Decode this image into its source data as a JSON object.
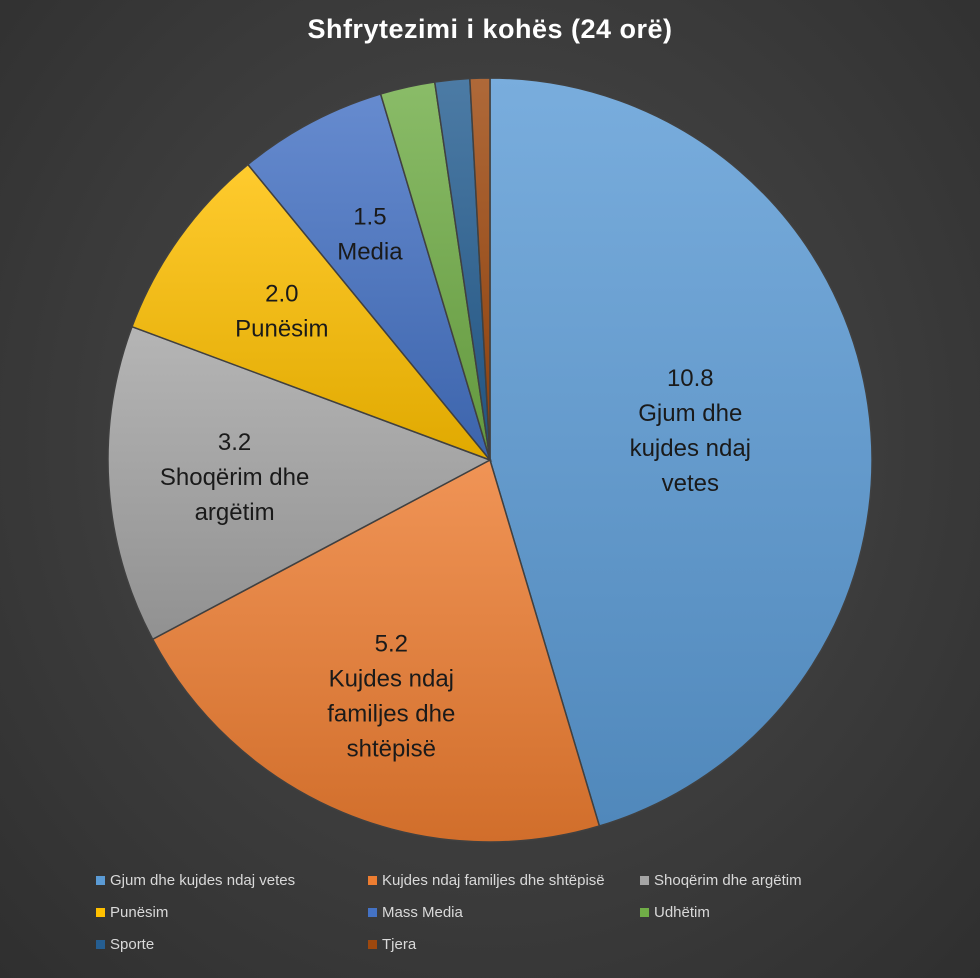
{
  "chart_data": {
    "type": "pie",
    "title": "Shfrytezimi i kohës (24 orë)",
    "legend_position": "bottom",
    "slices": [
      {
        "name": "Gjum dhe kujdes ndaj vetes",
        "value": 10.8,
        "color": "#5b9bd5",
        "label_lines": [
          "10.8",
          "Gjum dhe",
          "kujdes ndaj",
          "vetes"
        ]
      },
      {
        "name": "Kujdes ndaj familjes dhe shtëpisë",
        "value": 5.2,
        "color": "#ed7d31",
        "label_lines": [
          "5.2",
          "Kujdes ndaj",
          "familjes dhe",
          "shtëpisë"
        ]
      },
      {
        "name": "Shoqërim dhe argëtim",
        "value": 3.2,
        "color": "#a5a5a5",
        "label_lines": [
          "3.2",
          "Shoqërim dhe",
          "argëtim"
        ]
      },
      {
        "name": "Punësim",
        "value": 2.0,
        "color": "#ffc000",
        "label_lines": [
          "2.0",
          "Punësim"
        ]
      },
      {
        "name": "Mass Media",
        "value": 1.5,
        "color": "#4472c4",
        "label_lines": [
          "1.5",
          "Media"
        ]
      },
      {
        "name": "Udhëtim",
        "value": 0.55,
        "color": "#70ad47",
        "label_lines": []
      },
      {
        "name": "Sporte",
        "value": 0.35,
        "color": "#255e91",
        "label_lines": []
      },
      {
        "name": "Tjera",
        "value": 0.2,
        "color": "#9e480e",
        "label_lines": []
      }
    ]
  }
}
